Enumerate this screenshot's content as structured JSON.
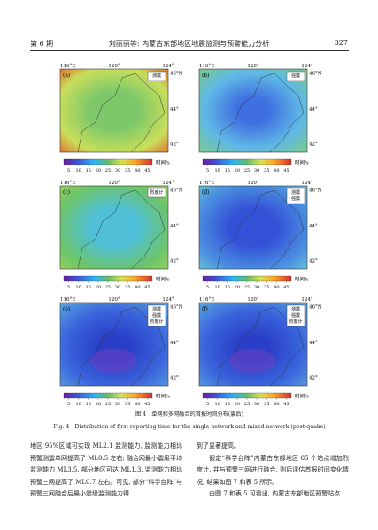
{
  "header": {
    "issue": "第 6 期",
    "title": "刘丽丽等: 内蒙古东部地区地震监测与预警能力分析",
    "page": "327"
  },
  "figure": {
    "axes": {
      "x": [
        "116°E",
        "120°",
        "124°"
      ],
      "y": [
        "46°N",
        "44°",
        "42°"
      ]
    },
    "colorbar": {
      "ticks": [
        5,
        10,
        15,
        20,
        25,
        30,
        35,
        40,
        45
      ],
      "unit": "时间/s"
    },
    "panels": [
      {
        "label": "(a)",
        "legend": [
          "测震"
        ]
      },
      {
        "label": "(b)",
        "legend": [
          "强震"
        ]
      },
      {
        "label": "(c)",
        "legend": [
          "烈度计"
        ]
      },
      {
        "label": "(d)",
        "legend": [
          "测震",
          "强震"
        ]
      },
      {
        "label": "(e)",
        "legend": [
          "测震",
          "强震",
          "烈度计"
        ]
      },
      {
        "label": "(f)",
        "legend": [
          "测震",
          "强震",
          "烈度计"
        ]
      }
    ],
    "caption_cn": "图 4　单网和多网融合的首报时间分布(震后)",
    "caption_en": "Fig. 4　Distribution of first reporting time for the single network and mixed network (post-quake)"
  },
  "body": {
    "left": [
      "地区 95%区域可实现 ML2.1 监测能力, 监测能力相比预警测震单网提高了 ML0.5 左右; 融合网最小震级平均监测能力 ML3.5, 部分地区可达 ML1.3, 监测能力相比预警三网提高了 ML0.7 左右。可见, 部分“科学台阵”与预警三网融合后最小震级监测能力得"
    ],
    "right": [
      "到了显著提高。",
      "假定“科学台阵”内蒙古东部地区 85 个站点增加烈度计, 并与预警三网进行融合, 则后评估首报时间变化情况, 结果如图 7 和表 5 所示。",
      "由图 7 和表 5 可看出, 内蒙古东部地区预警站点"
    ]
  }
}
